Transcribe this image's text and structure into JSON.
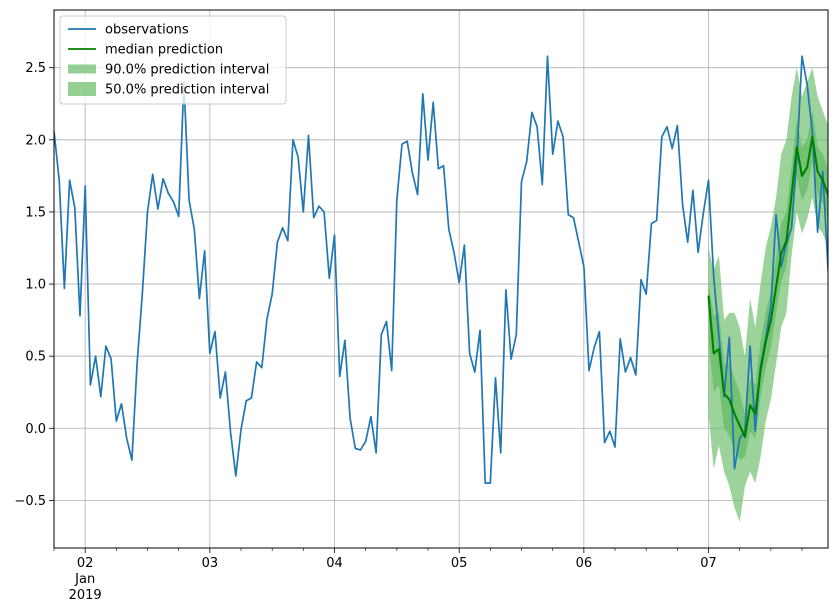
{
  "chart_data": {
    "type": "line",
    "title": "",
    "xlabel": "",
    "ylabel": "",
    "xlim": [
      "2019-01-01T18:00",
      "2019-01-07T23:00"
    ],
    "ylim": [
      -0.83,
      2.9
    ],
    "grid": true,
    "legend_position": "top-left",
    "x_ticks": [
      {
        "x": "2019-01-02T00:00",
        "label": "02"
      },
      {
        "x": "2019-01-03T00:00",
        "label": "03"
      },
      {
        "x": "2019-01-04T00:00",
        "label": "04"
      },
      {
        "x": "2019-01-05T00:00",
        "label": "05"
      },
      {
        "x": "2019-01-06T00:00",
        "label": "06"
      },
      {
        "x": "2019-01-07T00:00",
        "label": "07"
      }
    ],
    "x_sublabel": {
      "x": "2019-01-02T00:00",
      "lines": [
        "Jan",
        "2019"
      ]
    },
    "y_ticks": [
      -0.5,
      0.0,
      0.5,
      1.0,
      1.5,
      2.0,
      2.5
    ],
    "y_tick_labels": [
      "−0.5",
      "0.0",
      "0.5",
      "1.0",
      "1.5",
      "2.0",
      "2.5"
    ],
    "legend": [
      {
        "label": "observations",
        "kind": "line",
        "color": "#1f77b4"
      },
      {
        "label": "median prediction",
        "kind": "line",
        "color": "#008000"
      },
      {
        "label": "90.0% prediction interval",
        "kind": "band",
        "color": "#66bb66"
      },
      {
        "label": "50.0% prediction interval",
        "kind": "band",
        "color": "#66bb66"
      }
    ],
    "series": [
      {
        "name": "observations",
        "color": "#1f77b4",
        "start": "2019-01-01T18:00",
        "step_hours": 1,
        "values": [
          2.06,
          1.72,
          0.97,
          1.72,
          1.53,
          0.78,
          1.68,
          0.3,
          0.5,
          0.22,
          0.57,
          0.48,
          0.05,
          0.17,
          -0.07,
          -0.22,
          0.45,
          0.93,
          1.5,
          1.76,
          1.52,
          1.73,
          1.63,
          1.57,
          1.47,
          2.4,
          1.58,
          1.38,
          0.9,
          1.23,
          0.52,
          0.67,
          0.21,
          0.39,
          -0.03,
          -0.33,
          -0.01,
          0.19,
          0.21,
          0.46,
          0.42,
          0.76,
          0.93,
          1.29,
          1.39,
          1.3,
          2.0,
          1.88,
          1.5,
          2.03,
          1.46,
          1.54,
          1.5,
          1.04,
          1.34,
          0.36,
          0.61,
          0.07,
          -0.14,
          -0.15,
          -0.09,
          0.08,
          -0.17,
          0.65,
          0.74,
          0.4,
          1.58,
          1.97,
          1.99,
          1.77,
          1.62,
          2.32,
          1.86,
          2.26,
          1.8,
          1.82,
          1.38,
          1.22,
          1.01,
          1.27,
          0.52,
          0.39,
          0.68,
          -0.38,
          -0.38,
          0.35,
          -0.17,
          0.96,
          0.48,
          0.65,
          1.71,
          1.85,
          2.19,
          2.09,
          1.69,
          2.58,
          1.9,
          2.13,
          2.02,
          1.48,
          1.46,
          1.29,
          1.12,
          0.4,
          0.56,
          0.67,
          -0.1,
          -0.02,
          -0.13,
          0.62,
          0.39,
          0.49,
          0.37,
          1.03,
          0.93,
          1.42,
          1.44,
          2.02,
          2.09,
          1.94,
          2.1,
          1.55,
          1.29,
          1.65,
          1.22,
          1.49,
          1.72,
          1.05,
          0.64,
          0.22,
          0.63,
          -0.28,
          -0.07,
          -0.02,
          0.57,
          -0.02,
          0.43,
          0.62,
          0.85,
          1.48,
          1.12,
          1.28,
          1.39,
          1.87,
          2.58,
          2.38,
          2.05,
          1.36,
          1.78,
          1.11,
          0.53
        ]
      },
      {
        "name": "median prediction",
        "color": "#008000",
        "start": "2019-01-07T00:00",
        "step_hours": 1,
        "values": [
          0.92,
          0.52,
          0.55,
          0.24,
          0.2,
          0.1,
          0.02,
          -0.06,
          0.16,
          0.1,
          0.4,
          0.6,
          0.75,
          0.98,
          1.21,
          1.3,
          1.62,
          1.95,
          1.75,
          1.81,
          2.02,
          1.78,
          1.72,
          1.62,
          1.35,
          1.02
        ]
      }
    ],
    "bands": [
      {
        "name": "90.0% prediction interval",
        "color": "#66bb66",
        "start": "2019-01-07T00:00",
        "step_hours": 1,
        "lower": [
          0.1,
          -0.28,
          -0.12,
          -0.3,
          -0.4,
          -0.55,
          -0.65,
          -0.4,
          -0.3,
          -0.38,
          -0.2,
          0.05,
          0.2,
          0.45,
          0.7,
          0.8,
          1.2,
          1.5,
          1.35,
          1.45,
          1.6,
          1.4,
          1.35,
          1.25,
          0.95,
          0.6
        ],
        "upper": [
          1.25,
          1.1,
          1.2,
          0.75,
          0.8,
          0.8,
          0.7,
          0.5,
          0.9,
          0.7,
          1.0,
          1.25,
          1.4,
          1.6,
          1.9,
          2.0,
          2.3,
          2.5,
          2.3,
          2.4,
          2.5,
          2.3,
          2.2,
          2.1,
          1.8,
          1.45
        ]
      },
      {
        "name": "50.0% prediction interval",
        "color": "#66bb66",
        "start": "2019-01-07T00:00",
        "step_hours": 1,
        "lower": [
          0.62,
          0.25,
          0.3,
          0.0,
          -0.05,
          -0.15,
          -0.22,
          -0.2,
          -0.02,
          -0.07,
          0.22,
          0.42,
          0.56,
          0.8,
          1.02,
          1.12,
          1.45,
          1.75,
          1.58,
          1.65,
          1.85,
          1.62,
          1.56,
          1.45,
          1.17,
          0.85
        ],
        "upper": [
          1.02,
          0.78,
          0.8,
          0.45,
          0.45,
          0.35,
          0.25,
          0.1,
          0.35,
          0.3,
          0.6,
          0.8,
          0.95,
          1.18,
          1.42,
          1.5,
          1.82,
          2.15,
          1.95,
          2.0,
          2.2,
          1.95,
          1.9,
          1.8,
          1.55,
          1.2
        ]
      }
    ]
  }
}
